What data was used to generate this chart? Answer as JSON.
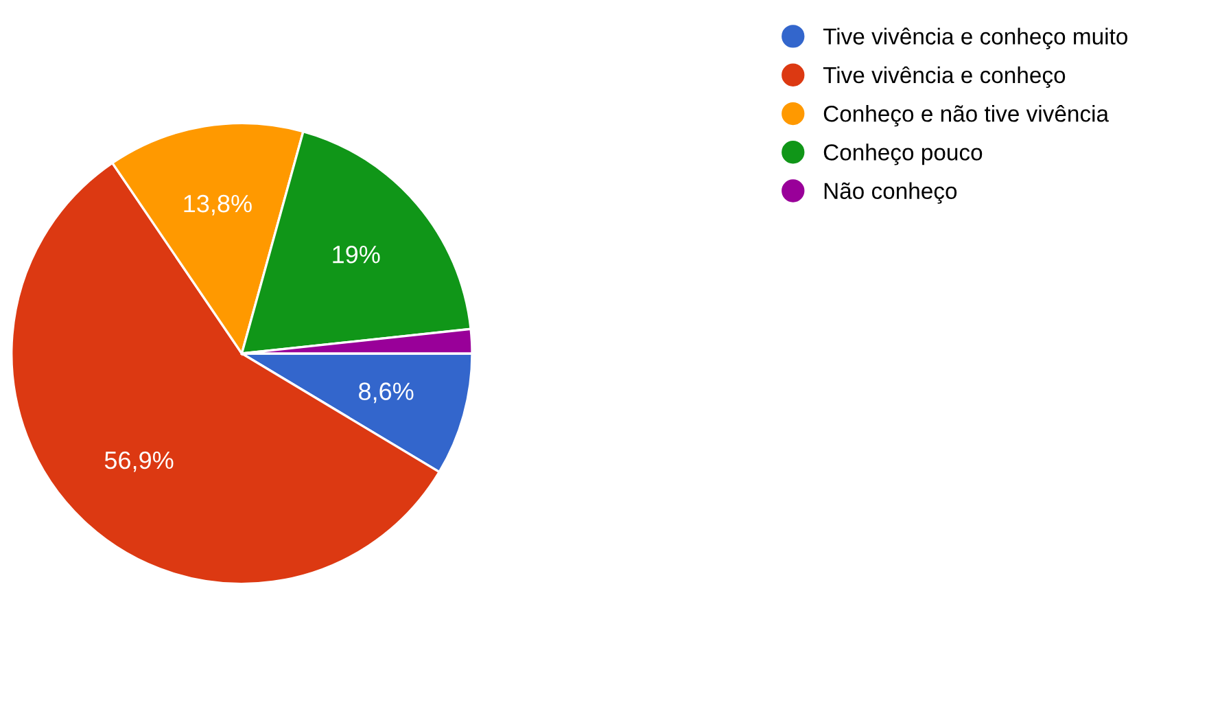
{
  "chart_data": {
    "type": "pie",
    "categories": [
      "Tive vivência e conheço muito",
      "Tive vivência e conheço",
      "Conheço e não tive vivência",
      "Conheço pouco",
      "Não conheço"
    ],
    "values": [
      8.6,
      56.9,
      13.8,
      19,
      1.7
    ],
    "colors": [
      "#3366cc",
      "#dc3912",
      "#ff9900",
      "#109618",
      "#990099"
    ],
    "value_labels": [
      "8,6%",
      "56,9%",
      "13,8%",
      "19%",
      null
    ],
    "legend": "top right"
  }
}
